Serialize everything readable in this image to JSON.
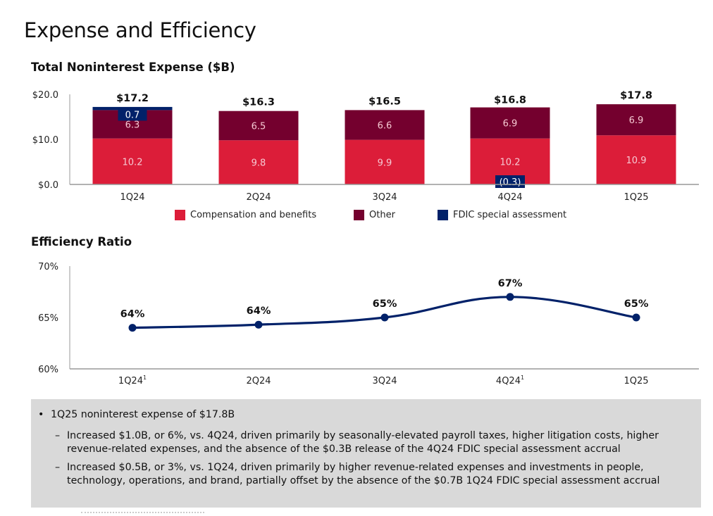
{
  "page": {
    "title": "Expense and Efficiency"
  },
  "colors": {
    "compensation": "#dc1d39",
    "other": "#74002e",
    "fdic": "#012169",
    "line": "#012169",
    "axis": "#999999",
    "commentary_bg": "#d9d9d9"
  },
  "chart_data": [
    {
      "type": "bar",
      "stacked": true,
      "title": "Total Noninterest Expense ($B)",
      "xlabel": "",
      "ylabel": "",
      "ylim": [
        0,
        20
      ],
      "yticks": [
        "$0.0",
        "$10.0",
        "$20.0"
      ],
      "ytick_values": [
        0,
        10,
        20
      ],
      "categories": [
        "1Q24",
        "2Q24",
        "3Q24",
        "4Q24",
        "1Q25"
      ],
      "totals": [
        "$17.2",
        "$16.3",
        "$16.5",
        "$16.8",
        "$17.8"
      ],
      "total_values": [
        17.2,
        16.3,
        16.5,
        16.8,
        17.8
      ],
      "series": [
        {
          "name": "Compensation and benefits",
          "key": "compensation",
          "values": [
            10.2,
            9.8,
            9.9,
            10.2,
            10.9
          ],
          "labels": [
            "10.2",
            "9.8",
            "9.9",
            "10.2",
            "10.9"
          ]
        },
        {
          "name": "Other",
          "key": "other",
          "values": [
            6.3,
            6.5,
            6.6,
            6.9,
            6.9
          ],
          "labels": [
            "6.3",
            "6.5",
            "6.6",
            "6.9",
            "6.9"
          ]
        },
        {
          "name": "FDIC special assessment",
          "key": "fdic",
          "values": [
            0.7,
            0,
            0,
            -0.3,
            0
          ],
          "labels": [
            "0.7",
            "",
            "",
            "(0.3)",
            ""
          ]
        }
      ],
      "legend": [
        "Compensation and benefits",
        "Other",
        "FDIC special assessment"
      ],
      "legend_position": "bottom",
      "grid": false
    },
    {
      "type": "line",
      "title": "Efficiency Ratio",
      "xlabel": "",
      "ylabel": "",
      "ylim": [
        60,
        70
      ],
      "yticks": [
        "60%",
        "65%",
        "70%"
      ],
      "ytick_values": [
        60,
        65,
        70
      ],
      "categories": [
        "1Q24",
        "2Q24",
        "3Q24",
        "4Q24",
        "1Q25"
      ],
      "category_footnotes": [
        "1",
        "",
        "",
        "1",
        ""
      ],
      "series": [
        {
          "name": "Efficiency Ratio",
          "values": [
            64.0,
            64.3,
            65.0,
            67.0,
            65.0
          ],
          "labels": [
            "64%",
            "64%",
            "65%",
            "67%",
            "65%"
          ]
        }
      ],
      "grid": false
    }
  ],
  "commentary": {
    "bullet": "1Q25 noninterest expense of $17.8B",
    "subs": [
      {
        "line1": "Increased $1.0B, or 6%, vs. 4Q24, driven primarily by seasonally-elevated payroll taxes, higher litigation costs, higher",
        "line2": "revenue-related expenses, and the absence of the $0.3B release of the 4Q24 FDIC special assessment accrual"
      },
      {
        "line1": "Increased $0.5B, or 3%, vs. 1Q24, driven primarily by higher revenue-related expenses and investments in people,",
        "line2": "technology, operations, and brand, partially offset by the absence of the $0.7B 1Q24 FDIC special assessment accrual"
      }
    ],
    "bullet_glyph": "•",
    "dash_glyph": "–"
  }
}
